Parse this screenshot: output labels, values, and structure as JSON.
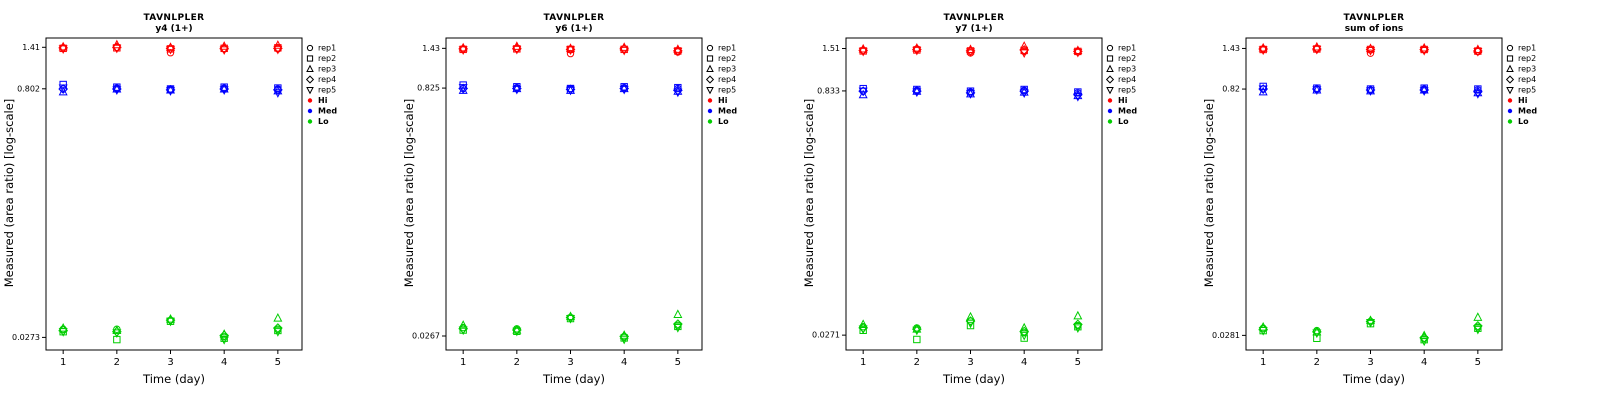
{
  "axes": {
    "xlabel": "Time (day)",
    "ylabel": "Measured (area ratio) [log-scale]"
  },
  "chart_data": {
    "type": "scatter",
    "x_scale": "linear",
    "y_scale": "log",
    "days": [
      1,
      2,
      3,
      4,
      5
    ],
    "marker_shapes": [
      "circle",
      "square",
      "triangle-up",
      "diamond",
      "triangle-down"
    ],
    "legend": {
      "reps": [
        {
          "label": "rep1",
          "shape": "circle"
        },
        {
          "label": "rep2",
          "shape": "square"
        },
        {
          "label": "rep3",
          "shape": "triangle-up"
        },
        {
          "label": "rep4",
          "shape": "diamond"
        },
        {
          "label": "rep5",
          "shape": "triangle-down"
        }
      ],
      "levels": [
        {
          "label": "Hi",
          "color": "#ff0000"
        },
        {
          "label": "Med",
          "color": "#0000ff"
        },
        {
          "label": "Lo",
          "color": "#00cd00"
        }
      ]
    },
    "panels": [
      {
        "title": "TAVNLPLER",
        "subtitle": "y4 (1+)",
        "ylim": [
          0.023,
          1.6
        ],
        "yticks": [
          1.41,
          0.802,
          0.0273
        ],
        "ytick_labels": [
          "1.41",
          "0.802",
          "0.0273"
        ],
        "series": {
          "Hi": [
            [
              1.4,
              1.39,
              1.42,
              1.4,
              1.38
            ],
            [
              1.41,
              1.4,
              1.46,
              1.41,
              1.39
            ],
            [
              1.31,
              1.38,
              1.41,
              1.39,
              1.37
            ],
            [
              1.38,
              1.39,
              1.43,
              1.39,
              1.36
            ],
            [
              1.38,
              1.4,
              1.45,
              1.39,
              1.37
            ]
          ],
          "Med": [
            [
              0.8,
              0.85,
              0.77,
              0.8,
              0.81
            ],
            [
              0.81,
              0.82,
              0.8,
              0.8,
              0.79
            ],
            [
              0.8,
              0.8,
              0.79,
              0.79,
              0.78
            ],
            [
              0.81,
              0.82,
              0.8,
              0.8,
              0.79
            ],
            [
              0.8,
              0.81,
              0.78,
              0.79,
              0.76
            ]
          ],
          "Lo": [
            [
              0.0305,
              0.0295,
              0.031,
              0.03,
              0.0295
            ],
            [
              0.0305,
              0.0265,
              0.03,
              0.0295,
              0.029
            ],
            [
              0.0345,
              0.034,
              0.035,
              0.0345,
              0.034
            ],
            [
              0.0275,
              0.027,
              0.0285,
              0.028,
              0.0265
            ],
            [
              0.0305,
              0.03,
              0.0355,
              0.031,
              0.0295
            ]
          ]
        }
      },
      {
        "title": "TAVNLPLER",
        "subtitle": "y6 (1+)",
        "ylim": [
          0.022,
          1.65
        ],
        "yticks": [
          1.43,
          0.825,
          0.0267
        ],
        "ytick_labels": [
          "1.43",
          "0.825",
          "0.0267"
        ],
        "series": {
          "Hi": [
            [
              1.42,
              1.41,
              1.44,
              1.42,
              1.4
            ],
            [
              1.43,
              1.42,
              1.47,
              1.43,
              1.41
            ],
            [
              1.33,
              1.41,
              1.43,
              1.41,
              1.4
            ],
            [
              1.42,
              1.41,
              1.45,
              1.42,
              1.39
            ],
            [
              1.36,
              1.38,
              1.41,
              1.38,
              1.37
            ]
          ],
          "Med": [
            [
              0.82,
              0.86,
              0.8,
              0.82,
              0.83
            ],
            [
              0.83,
              0.84,
              0.82,
              0.82,
              0.81
            ],
            [
              0.82,
              0.82,
              0.8,
              0.81,
              0.8
            ],
            [
              0.83,
              0.84,
              0.82,
              0.82,
              0.81
            ],
            [
              0.82,
              0.83,
              0.79,
              0.8,
              0.78
            ]
          ],
          "Lo": [
            [
              0.03,
              0.029,
              0.031,
              0.0295,
              0.029
            ],
            [
              0.0295,
              0.0285,
              0.029,
              0.029,
              0.0285
            ],
            [
              0.0345,
              0.034,
              0.035,
              0.0345,
              0.034
            ],
            [
              0.0265,
              0.026,
              0.027,
              0.0265,
              0.0255
            ],
            [
              0.031,
              0.0305,
              0.036,
              0.0315,
              0.03
            ]
          ]
        }
      },
      {
        "title": "TAVNLPLER",
        "subtitle": "y7 (1+)",
        "ylim": [
          0.022,
          1.75
        ],
        "yticks": [
          1.51,
          0.833,
          0.0271
        ],
        "ytick_labels": [
          "1.51",
          "0.833",
          "0.0271"
        ],
        "series": {
          "Hi": [
            [
              1.47,
              1.46,
              1.5,
              1.47,
              1.45
            ],
            [
              1.5,
              1.48,
              1.52,
              1.49,
              1.47
            ],
            [
              1.42,
              1.46,
              1.49,
              1.46,
              1.44
            ],
            [
              1.45,
              1.47,
              1.56,
              1.48,
              1.42
            ],
            [
              1.44,
              1.45,
              1.47,
              1.45,
              1.43
            ]
          ],
          "Med": [
            [
              0.83,
              0.86,
              0.79,
              0.83,
              0.83
            ],
            [
              0.84,
              0.85,
              0.83,
              0.83,
              0.82
            ],
            [
              0.82,
              0.83,
              0.8,
              0.81,
              0.8
            ],
            [
              0.84,
              0.85,
              0.82,
              0.83,
              0.81
            ],
            [
              0.81,
              0.82,
              0.78,
              0.79,
              0.77
            ]
          ],
          "Lo": [
            [
              0.0305,
              0.029,
              0.0315,
              0.03,
              0.0295
            ],
            [
              0.03,
              0.0255,
              0.0295,
              0.0295,
              0.029
            ],
            [
              0.033,
              0.031,
              0.035,
              0.033,
              0.032
            ],
            [
              0.028,
              0.026,
              0.03,
              0.0285,
              0.027
            ],
            [
              0.031,
              0.0305,
              0.0355,
              0.0315,
              0.03
            ]
          ]
        }
      },
      {
        "title": "TAVNLPLER",
        "subtitle": "sum of ions",
        "ylim": [
          0.023,
          1.65
        ],
        "yticks": [
          1.43,
          0.82,
          0.0281
        ],
        "ytick_labels": [
          "1.43",
          "0.82",
          "0.0281"
        ],
        "series": {
          "Hi": [
            [
              1.42,
              1.41,
              1.44,
              1.42,
              1.4
            ],
            [
              1.43,
              1.42,
              1.46,
              1.42,
              1.41
            ],
            [
              1.34,
              1.41,
              1.43,
              1.41,
              1.39
            ],
            [
              1.41,
              1.41,
              1.44,
              1.41,
              1.39
            ],
            [
              1.37,
              1.38,
              1.41,
              1.38,
              1.37
            ]
          ],
          "Med": [
            [
              0.82,
              0.85,
              0.79,
              0.82,
              0.82
            ],
            [
              0.82,
              0.83,
              0.81,
              0.82,
              0.81
            ],
            [
              0.81,
              0.82,
              0.8,
              0.81,
              0.8
            ],
            [
              0.82,
              0.83,
              0.81,
              0.81,
              0.8
            ],
            [
              0.81,
              0.82,
              0.78,
              0.79,
              0.77
            ]
          ],
          "Lo": [
            [
              0.031,
              0.03,
              0.0315,
              0.0305,
              0.03
            ],
            [
              0.03,
              0.027,
              0.0295,
              0.0295,
              0.029
            ],
            [
              0.034,
              0.033,
              0.0345,
              0.034,
              0.0335
            ],
            [
              0.027,
              0.0265,
              0.028,
              0.0272,
              0.026
            ],
            [
              0.0315,
              0.031,
              0.036,
              0.032,
              0.0305
            ]
          ]
        }
      }
    ]
  }
}
